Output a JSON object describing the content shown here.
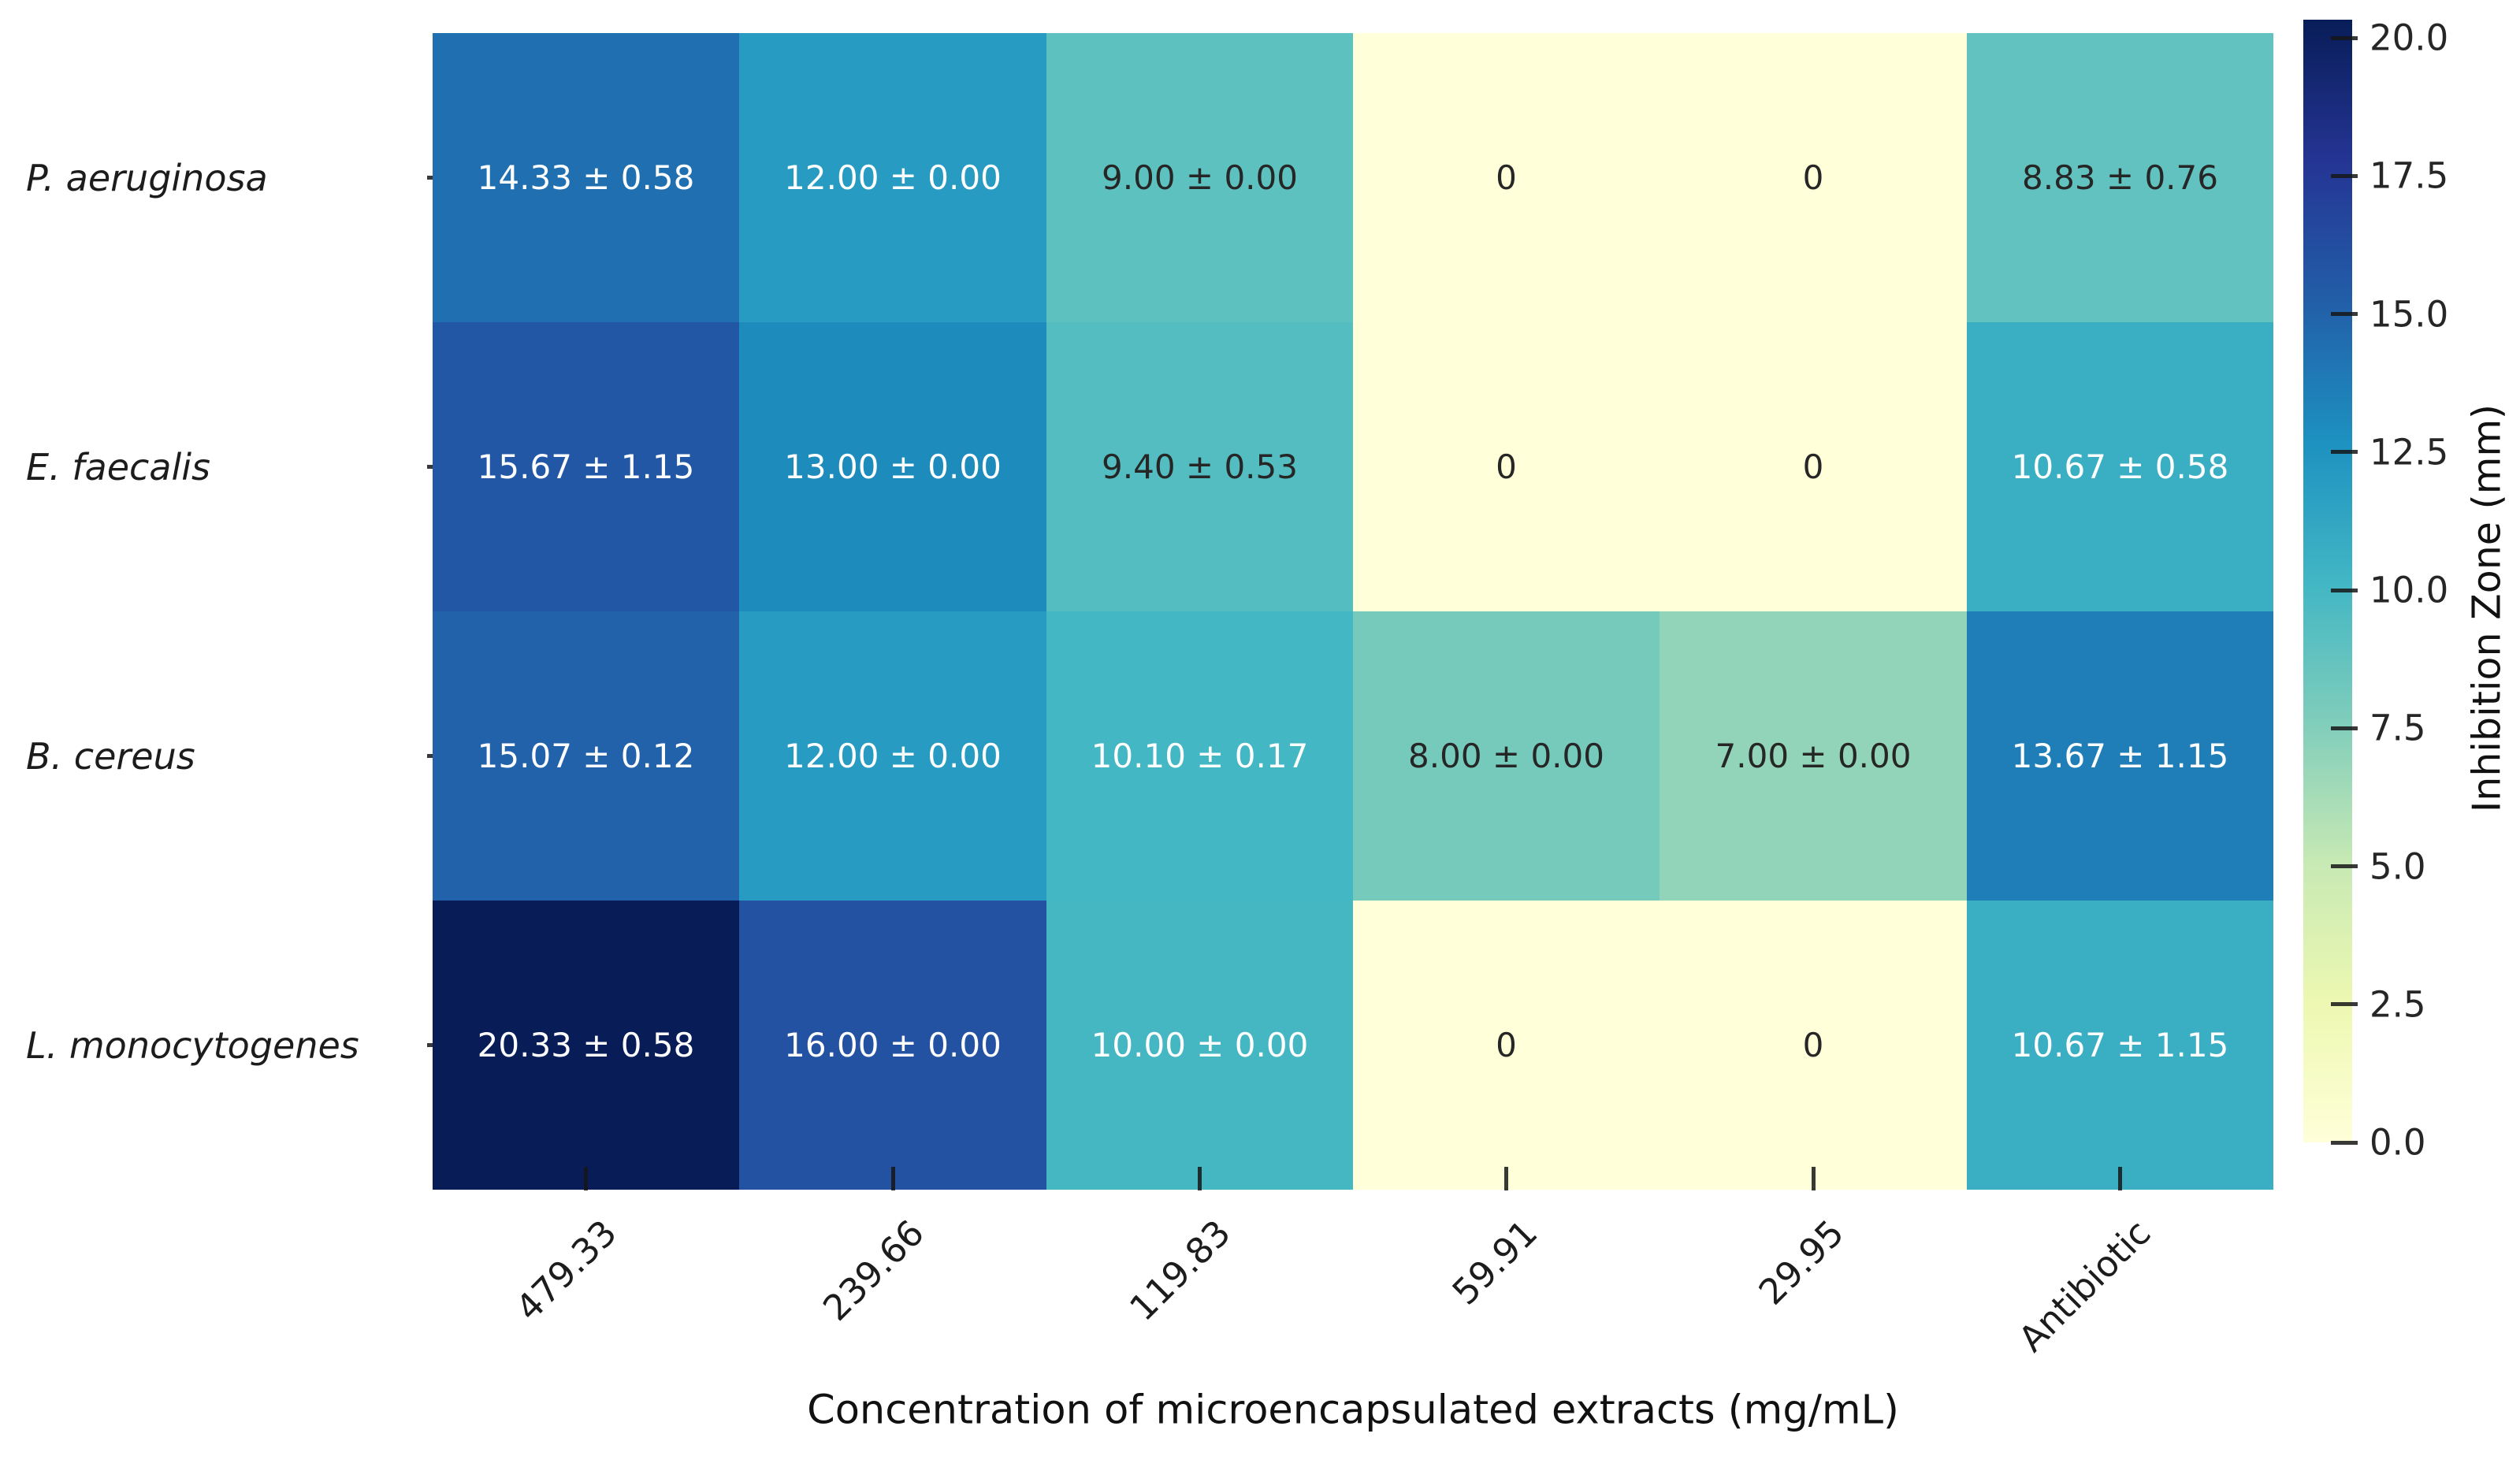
{
  "figure": {
    "background": "#ffffff"
  },
  "chart_data": {
    "type": "heatmap",
    "title": "",
    "xlabel": "Concentration of microencapsulated extracts (mg/mL)",
    "ylabel": "",
    "colorbar_label": "Inhibition Zone (mm)",
    "rows": [
      "P. aeruginosa",
      "E. faecalis",
      "B. cereus",
      "L. monocytogenes"
    ],
    "columns": [
      "479.33",
      "239.66",
      "119.83",
      "59.91",
      "29.95",
      "Antibiotic"
    ],
    "values": [
      [
        14.33,
        12.0,
        9.0,
        0,
        0,
        8.83
      ],
      [
        15.67,
        13.0,
        9.4,
        0,
        0,
        10.67
      ],
      [
        15.07,
        12.0,
        10.1,
        8.0,
        7.0,
        13.67
      ],
      [
        20.33,
        16.0,
        10.0,
        0,
        0,
        10.67
      ]
    ],
    "annotations": [
      [
        "14.33 ± 0.58",
        "12.00 ± 0.00",
        "9.00 ± 0.00",
        "0",
        "0",
        "8.83 ± 0.76"
      ],
      [
        "15.67 ± 1.15",
        "13.00 ± 0.00",
        "9.40 ± 0.53",
        "0",
        "0",
        "10.67 ± 0.58"
      ],
      [
        "15.07 ± 0.12",
        "12.00 ± 0.00",
        "10.10 ± 0.17",
        "8.00 ± 0.00",
        "7.00 ± 0.00",
        "13.67 ± 1.15"
      ],
      [
        "20.33 ± 0.58",
        "16.00 ± 0.00",
        "10.00 ± 0.00",
        "0",
        "0",
        "10.67 ± 1.15"
      ]
    ],
    "vmin": 0,
    "vmax": 20.33,
    "colormap": {
      "name": "YlGnBu",
      "stops": [
        "#ffffd9",
        "#edf8b1",
        "#c7e9b4",
        "#7fcdbb",
        "#41b6c4",
        "#1d91c0",
        "#225ea8",
        "#253494",
        "#081d58"
      ]
    },
    "colorbar_ticks": [
      20.0,
      17.5,
      15.0,
      12.5,
      10.0,
      7.5,
      5.0,
      2.5,
      0.0
    ],
    "colorbar_tick_labels": [
      "20.0",
      "17.5",
      "15.0",
      "12.5",
      "10.0",
      "7.5",
      "5.0",
      "2.5",
      "0.0"
    ],
    "annotation_text_colors": {
      "light": "#ffffff",
      "dark": "#262626"
    },
    "axis_text_color": "#1c1c1c",
    "grid": false,
    "legend_position": "colorbar-right"
  }
}
